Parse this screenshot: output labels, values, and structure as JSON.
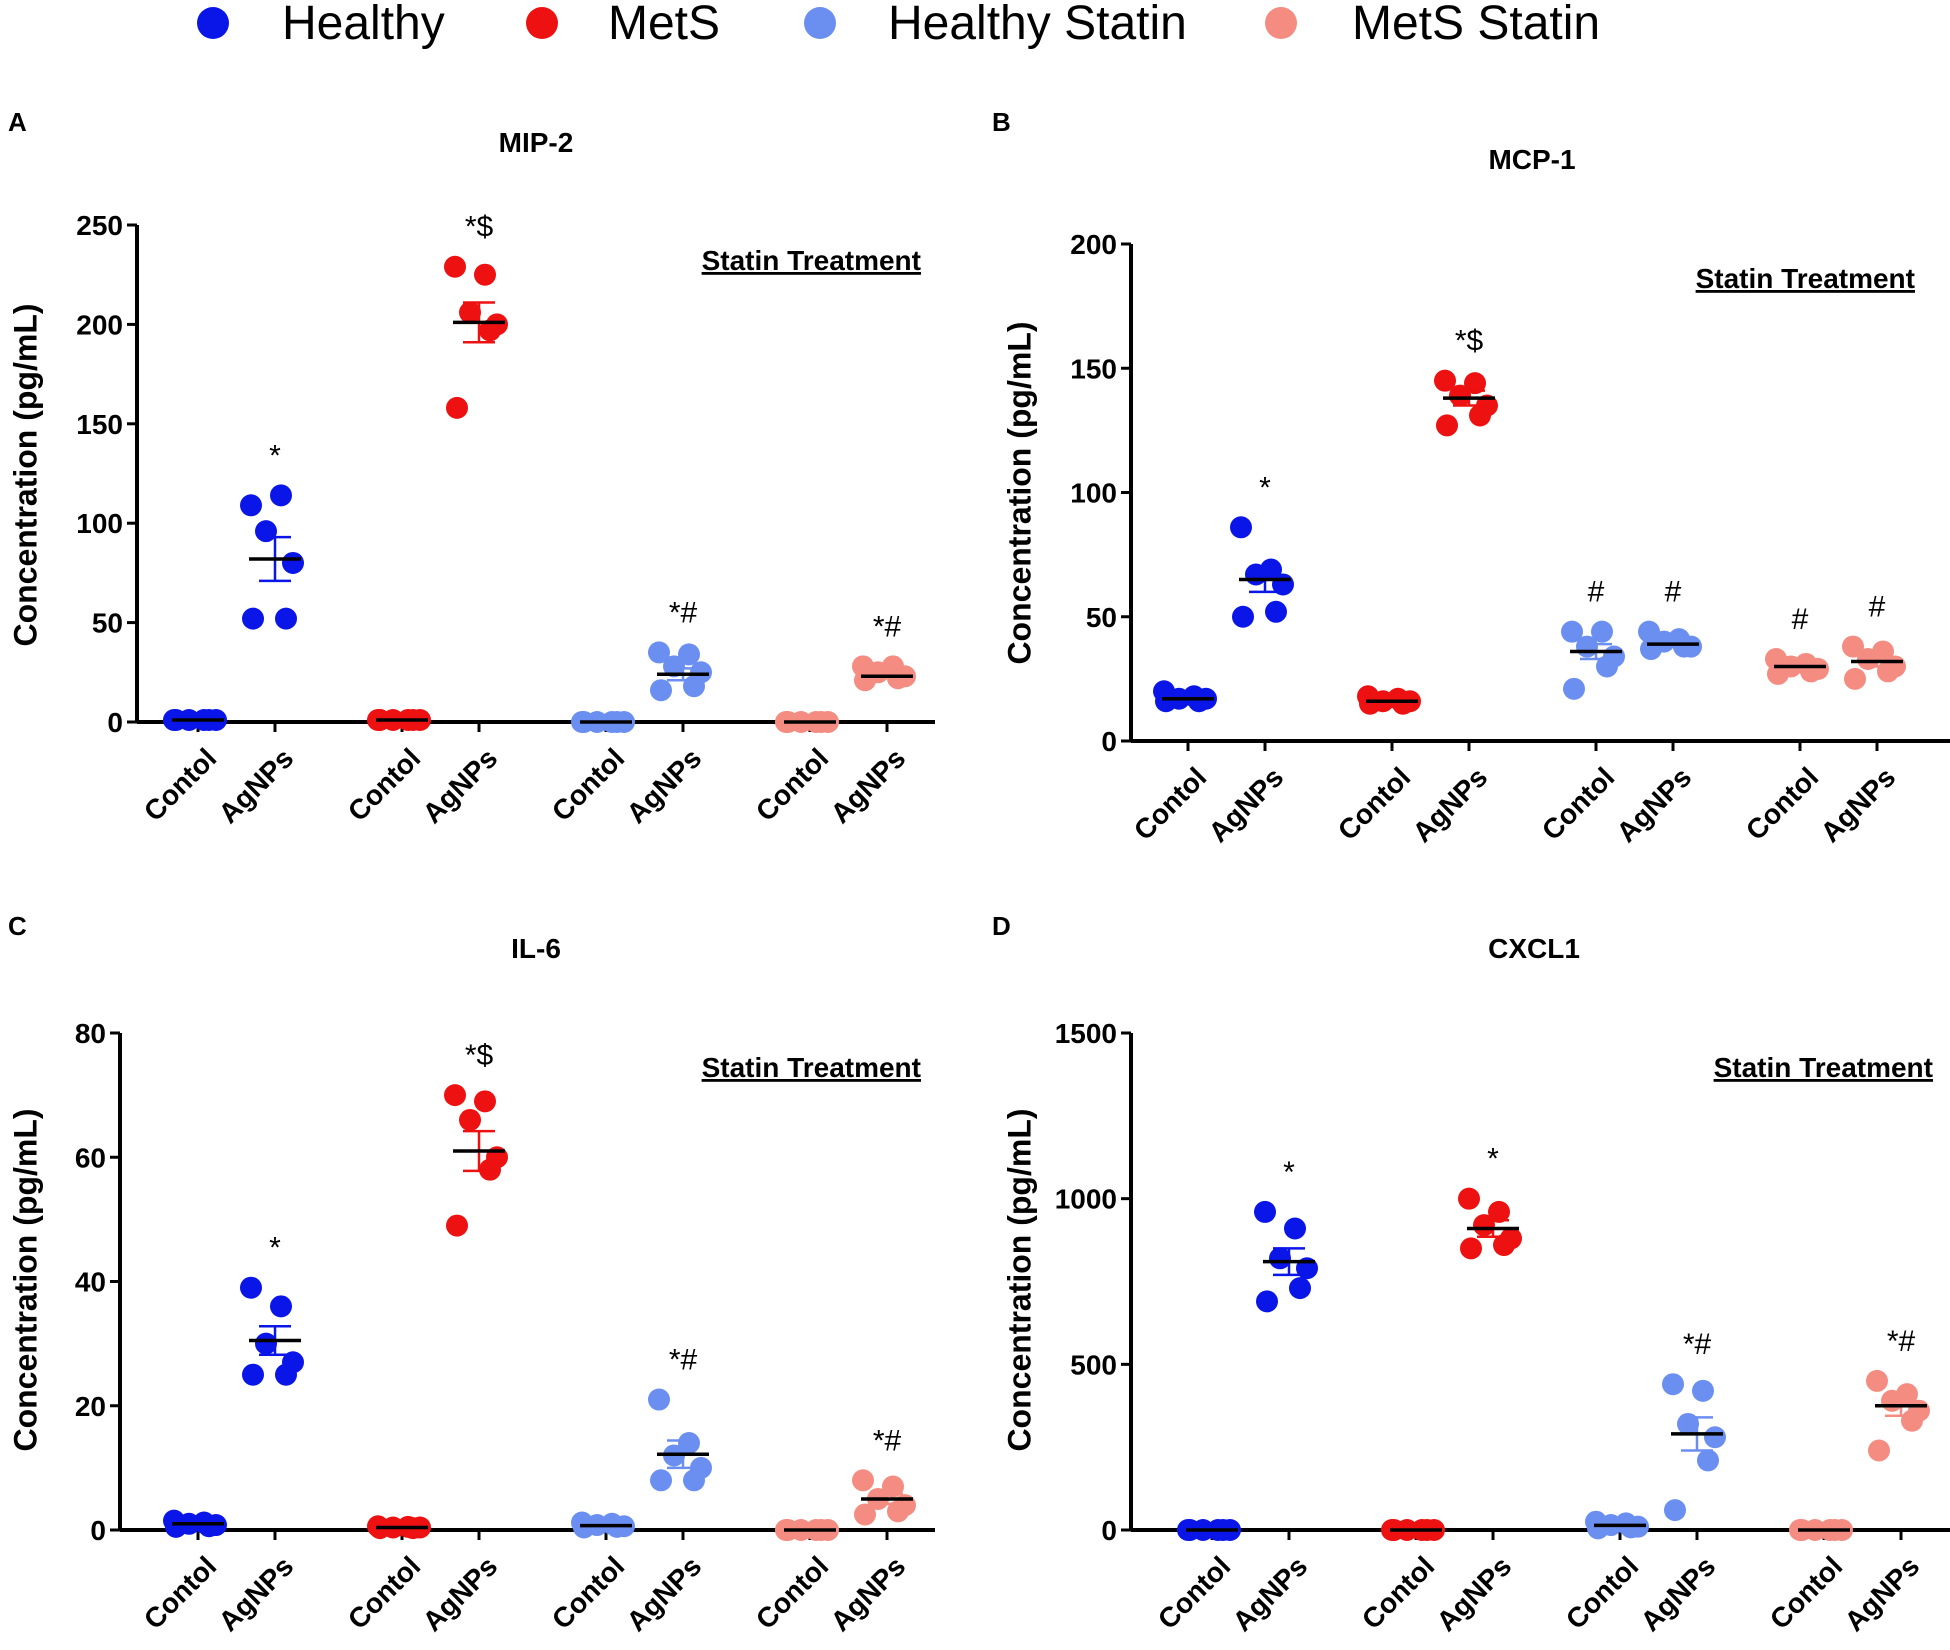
{
  "legend": [
    {
      "label": "Healthy",
      "color": "#0a16e8"
    },
    {
      "label": "MetS",
      "color": "#ee1111"
    },
    {
      "label": "Healthy Statin",
      "color": "#6b8ff0"
    },
    {
      "label": "MetS Statin",
      "color": "#f48c82"
    }
  ],
  "chart_data": [
    {
      "type": "scatter",
      "panel": "A",
      "title": "MIP-2",
      "ylabel": "Concentration (pg/mL)",
      "ylim": [
        0,
        250
      ],
      "yticks": [
        0,
        50,
        100,
        150,
        200,
        250
      ],
      "group_caption": "Statin Treatment",
      "groups": [
        {
          "label": "Contol",
          "series": "Healthy",
          "points": [
            1,
            1,
            1,
            1,
            1,
            1
          ],
          "mean": 1,
          "sem": 0,
          "annotation": ""
        },
        {
          "label": "AgNPs",
          "series": "Healthy",
          "points": [
            109,
            114,
            96,
            80,
            52,
            52
          ],
          "mean": 82,
          "sem": 11,
          "annotation": "*"
        },
        {
          "label": "Contol",
          "series": "MetS",
          "points": [
            1,
            1,
            1,
            1,
            1,
            1
          ],
          "mean": 1,
          "sem": 0,
          "annotation": ""
        },
        {
          "label": "AgNPs",
          "series": "MetS",
          "points": [
            229,
            225,
            206,
            200,
            197,
            158
          ],
          "mean": 201,
          "sem": 10,
          "annotation": "*$"
        },
        {
          "label": "Contol",
          "series": "Healthy Statin",
          "points": [
            0,
            0,
            0,
            0,
            0,
            0
          ],
          "mean": 0,
          "sem": 0,
          "annotation": ""
        },
        {
          "label": "AgNPs",
          "series": "Healthy Statin",
          "points": [
            35,
            34,
            28,
            25,
            18,
            16
          ],
          "mean": 24,
          "sem": 3,
          "annotation": "*#"
        },
        {
          "label": "Contol",
          "series": "MetS Statin",
          "points": [
            0,
            0,
            0,
            0,
            0,
            0
          ],
          "mean": 0,
          "sem": 0,
          "annotation": ""
        },
        {
          "label": "AgNPs",
          "series": "MetS Statin",
          "points": [
            28,
            28,
            25,
            23,
            22,
            21
          ],
          "mean": 23,
          "sem": 1,
          "annotation": "*#"
        }
      ]
    },
    {
      "type": "scatter",
      "panel": "B",
      "title": "MCP-1",
      "ylabel": "Concentration (pg/mL)",
      "ylim": [
        0,
        200
      ],
      "yticks": [
        0,
        50,
        100,
        150,
        200
      ],
      "group_caption": "Statin Treatment",
      "groups": [
        {
          "label": "Contol",
          "series": "Healthy",
          "points": [
            20,
            18,
            17,
            17,
            16,
            16
          ],
          "mean": 17,
          "sem": 1,
          "annotation": ""
        },
        {
          "label": "AgNPs",
          "series": "Healthy",
          "points": [
            86,
            69,
            67,
            63,
            52,
            50
          ],
          "mean": 65,
          "sem": 5,
          "annotation": "*"
        },
        {
          "label": "Contol",
          "series": "MetS",
          "points": [
            18,
            17,
            16,
            16,
            15,
            15
          ],
          "mean": 16,
          "sem": 1,
          "annotation": ""
        },
        {
          "label": "AgNPs",
          "series": "MetS",
          "points": [
            145,
            144,
            139,
            135,
            131,
            127
          ],
          "mean": 138,
          "sem": 3,
          "annotation": "*$"
        },
        {
          "label": "Contol",
          "series": "Healthy Statin",
          "points": [
            44,
            44,
            38,
            34,
            30,
            21
          ],
          "mean": 36,
          "sem": 3,
          "annotation": "#"
        },
        {
          "label": "AgNPs",
          "series": "Healthy Statin",
          "points": [
            44,
            41,
            40,
            38,
            38,
            37
          ],
          "mean": 39,
          "sem": 1,
          "annotation": "#"
        },
        {
          "label": "Contol",
          "series": "MetS Statin",
          "points": [
            33,
            31,
            30,
            29,
            28,
            27
          ],
          "mean": 30,
          "sem": 1,
          "annotation": "#"
        },
        {
          "label": "AgNPs",
          "series": "MetS Statin",
          "points": [
            38,
            36,
            33,
            30,
            28,
            25
          ],
          "mean": 32,
          "sem": 2,
          "annotation": "#"
        }
      ]
    },
    {
      "type": "scatter",
      "panel": "C",
      "title": "IL-6",
      "ylabel": "Concentration (pg/mL)",
      "ylim": [
        0,
        80
      ],
      "yticks": [
        0,
        20,
        40,
        60,
        80
      ],
      "group_caption": "Statin Treatment",
      "groups": [
        {
          "label": "Contol",
          "series": "Healthy",
          "points": [
            1.5,
            1.2,
            1,
            0.8,
            0.6,
            0.5
          ],
          "mean": 1,
          "sem": 0.2,
          "annotation": ""
        },
        {
          "label": "AgNPs",
          "series": "Healthy",
          "points": [
            39,
            36,
            30,
            27,
            25,
            25
          ],
          "mean": 30.5,
          "sem": 2.3,
          "annotation": "*"
        },
        {
          "label": "Contol",
          "series": "MetS",
          "points": [
            0.6,
            0.5,
            0.4,
            0.4,
            0.3,
            0.3
          ],
          "mean": 0.4,
          "sem": 0.1,
          "annotation": ""
        },
        {
          "label": "AgNPs",
          "series": "MetS",
          "points": [
            70,
            69,
            66,
            60,
            58,
            49
          ],
          "mean": 61,
          "sem": 3.2,
          "annotation": "*$"
        },
        {
          "label": "Contol",
          "series": "Healthy Statin",
          "points": [
            1.2,
            1,
            0.8,
            0.6,
            0.5,
            0.4
          ],
          "mean": 0.7,
          "sem": 0.1,
          "annotation": ""
        },
        {
          "label": "AgNPs",
          "series": "Healthy Statin",
          "points": [
            21,
            14,
            12,
            10,
            8,
            8
          ],
          "mean": 12.2,
          "sem": 2.2,
          "annotation": "*#"
        },
        {
          "label": "Contol",
          "series": "MetS Statin",
          "points": [
            0,
            0,
            0,
            0,
            0,
            0
          ],
          "mean": 0,
          "sem": 0,
          "annotation": ""
        },
        {
          "label": "AgNPs",
          "series": "MetS Statin",
          "points": [
            8,
            7,
            5,
            4,
            3,
            2.5
          ],
          "mean": 5,
          "sem": 0.8,
          "annotation": "*#"
        }
      ]
    },
    {
      "type": "scatter",
      "panel": "D",
      "title": "CXCL1",
      "ylabel": "Concentration (pg/mL)",
      "ylim": [
        0,
        1500
      ],
      "yticks": [
        0,
        500,
        1000,
        1500
      ],
      "group_caption": "Statin Treatment",
      "groups": [
        {
          "label": "Contol",
          "series": "Healthy",
          "points": [
            0,
            0,
            0,
            0,
            0,
            0
          ],
          "mean": 0,
          "sem": 0,
          "annotation": ""
        },
        {
          "label": "AgNPs",
          "series": "Healthy",
          "points": [
            960,
            910,
            820,
            790,
            730,
            690
          ],
          "mean": 810,
          "sem": 40,
          "annotation": "*"
        },
        {
          "label": "Contol",
          "series": "MetS",
          "points": [
            0,
            0,
            0,
            0,
            0,
            0
          ],
          "mean": 0,
          "sem": 0,
          "annotation": ""
        },
        {
          "label": "AgNPs",
          "series": "MetS",
          "points": [
            1000,
            960,
            920,
            880,
            860,
            850
          ],
          "mean": 910,
          "sem": 25,
          "annotation": "*"
        },
        {
          "label": "Contol",
          "series": "Healthy Statin",
          "points": [
            25,
            20,
            15,
            10,
            8,
            5
          ],
          "mean": 14,
          "sem": 3,
          "annotation": ""
        },
        {
          "label": "AgNPs",
          "series": "Healthy Statin",
          "points": [
            440,
            420,
            320,
            280,
            210,
            60
          ],
          "mean": 290,
          "sem": 50,
          "annotation": "*#"
        },
        {
          "label": "Contol",
          "series": "MetS Statin",
          "points": [
            0,
            0,
            0,
            0,
            0,
            0
          ],
          "mean": 0,
          "sem": 0,
          "annotation": ""
        },
        {
          "label": "AgNPs",
          "series": "MetS Statin",
          "points": [
            450,
            410,
            390,
            360,
            330,
            240
          ],
          "mean": 375,
          "sem": 30,
          "annotation": "*#"
        }
      ]
    }
  ]
}
